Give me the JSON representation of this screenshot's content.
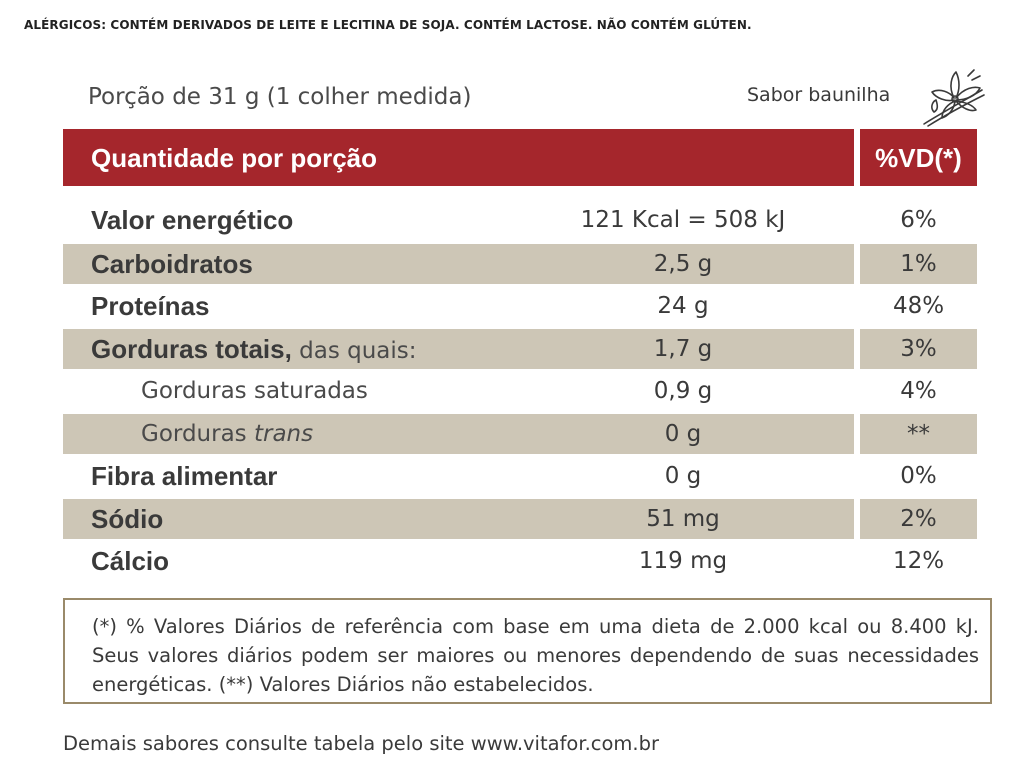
{
  "allergens": "ALÉRGICOS: CONTÉM DERIVADOS DE LEITE E LECITINA DE SOJA. CONTÉM LACTOSE. NÃO CONTÉM GLÚTEN.",
  "portion": "Porção de 31 g (1 colher medida)",
  "flavor": "Sabor baunilha",
  "flavor_icon": "vanilla-flower-icon",
  "colors": {
    "header": "#a5262c",
    "shade": "#cdc6b6",
    "border": "#9a8a6a"
  },
  "table": {
    "header_label": "Quantidade por porção",
    "header_vd": "%VD(*)",
    "rows": [
      {
        "label": "Valor energético",
        "amount": "121 Kcal = 508 kJ",
        "vd": "6%"
      },
      {
        "label": "Carboidratos",
        "amount": "2,5 g",
        "vd": "1%"
      },
      {
        "label": "Proteínas",
        "amount": "24 g",
        "vd": "48%"
      },
      {
        "label": "Gorduras totais,",
        "label_suffix": " das quais:",
        "amount": "1,7 g",
        "vd": "3%"
      },
      {
        "label": "Gorduras saturadas",
        "amount": "0,9 g",
        "vd": "4%"
      },
      {
        "label": "Gorduras ",
        "label_italic": "trans",
        "amount": "0 g",
        "vd": "**"
      },
      {
        "label": "Fibra alimentar",
        "amount": "0 g",
        "vd": "0%"
      },
      {
        "label": "Sódio",
        "amount": "51 mg",
        "vd": "2%"
      },
      {
        "label": "Cálcio",
        "amount": "119 mg",
        "vd": "12%"
      }
    ]
  },
  "footnote": "(*) % Valores Diários de referência com base em uma dieta de 2.000 kcal ou 8.400 kJ. Seus valores diários podem ser maiores ou menores dependendo de suas necessidades energéticas. (**) Valores Diários não estabelecidos.",
  "website_note": "Demais sabores consulte tabela pelo site www.vitafor.com.br"
}
